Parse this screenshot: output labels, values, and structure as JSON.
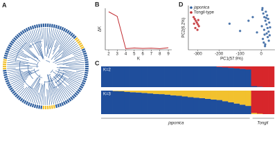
{
  "panel_labels": [
    "A",
    "B",
    "C",
    "D"
  ],
  "chart_data": [
    {
      "type": "line",
      "y_label": "ΔK",
      "x_label": "K",
      "x": [
        2,
        3,
        4,
        5,
        6,
        7,
        8,
        9
      ],
      "values": [
        165,
        145,
        5,
        8,
        6,
        7,
        5,
        9
      ],
      "color": "#c0282d",
      "xlim": [
        1.6,
        9.4
      ],
      "xticks": [
        2,
        3,
        4,
        5,
        6,
        7,
        8,
        9
      ],
      "ylim": [
        0,
        180
      ]
    },
    {
      "type": "scatter",
      "x_label": "PC1(57.9%)",
      "y_label": "PC2(6.2%)",
      "xlim": [
        -345,
        65
      ],
      "ylim": [
        -60,
        62
      ],
      "xticks": [
        -300,
        -200,
        -100,
        0
      ],
      "legend": "upper left",
      "series": [
        {
          "name": "japonica",
          "color": "#2f5f9e",
          "x": [
            5,
            10,
            15,
            20,
            25,
            30,
            35,
            40,
            8,
            12,
            18,
            22,
            28,
            33,
            38,
            3,
            14,
            26,
            31,
            36,
            6,
            19,
            24,
            42,
            16,
            -150,
            -100,
            -60,
            -20,
            -40
          ],
          "y": [
            50,
            40,
            30,
            20,
            10,
            0,
            -10,
            -20,
            -30,
            -40,
            -50,
            45,
            35,
            25,
            15,
            5,
            -5,
            -15,
            -25,
            -35,
            55,
            -45,
            28,
            2,
            -18,
            12,
            -8,
            20,
            -12,
            30
          ]
        },
        {
          "name": "Tongil-type",
          "color": "#c0282d",
          "x": [
            -320,
            -315,
            -310,
            -305,
            -300,
            -295,
            -312,
            -302,
            -318,
            -298
          ],
          "y": [
            30,
            25,
            20,
            15,
            10,
            5,
            0,
            -5,
            12,
            22
          ]
        }
      ]
    },
    {
      "type": "stacked_bar",
      "title": "K=2",
      "ylim": [
        0,
        1
      ],
      "series": [
        {
          "color": "#1f4e9c",
          "values": [
            1,
            1,
            1,
            1,
            1,
            1,
            1,
            1,
            1,
            1,
            1,
            1,
            1,
            1,
            1,
            1,
            1,
            1,
            1,
            1,
            0.97,
            0.95,
            0.93,
            0.9,
            0.88,
            0.85,
            0.05,
            0.02,
            0,
            0
          ]
        },
        {
          "color": "#d7262b",
          "values": [
            0,
            0,
            0,
            0,
            0,
            0,
            0,
            0,
            0,
            0,
            0,
            0,
            0,
            0,
            0,
            0,
            0,
            0,
            0,
            0,
            0.03,
            0.05,
            0.07,
            0.1,
            0.12,
            0.15,
            0.95,
            0.98,
            1,
            1
          ]
        }
      ]
    },
    {
      "type": "stacked_bar",
      "title": "K=3",
      "ylim": [
        0,
        1
      ],
      "annotations": [
        "japonica",
        "Tongil"
      ],
      "series": [
        {
          "color": "#1f4e9c",
          "values": [
            1,
            1,
            0.98,
            0.97,
            0.95,
            0.93,
            0.92,
            0.9,
            0.88,
            0.86,
            0.85,
            0.83,
            0.8,
            0.78,
            0.75,
            0.72,
            0.7,
            0.68,
            0.65,
            0.62,
            0.6,
            0.55,
            0.5,
            0.45,
            0.4,
            0.35,
            0,
            0,
            0,
            0
          ]
        },
        {
          "color": "#f2c12e",
          "values": [
            0,
            0,
            0.02,
            0.03,
            0.05,
            0.07,
            0.08,
            0.1,
            0.12,
            0.14,
            0.15,
            0.17,
            0.2,
            0.22,
            0.25,
            0.28,
            0.3,
            0.32,
            0.35,
            0.38,
            0.4,
            0.45,
            0.5,
            0.55,
            0.6,
            0.65,
            0.05,
            0.02,
            0,
            0
          ]
        },
        {
          "color": "#d7262b",
          "values": [
            0,
            0,
            0,
            0,
            0,
            0,
            0,
            0,
            0,
            0,
            0,
            0,
            0,
            0,
            0,
            0,
            0,
            0,
            0,
            0,
            0,
            0,
            0,
            0,
            0,
            0,
            0.95,
            0.98,
            1,
            1
          ]
        }
      ]
    }
  ]
}
